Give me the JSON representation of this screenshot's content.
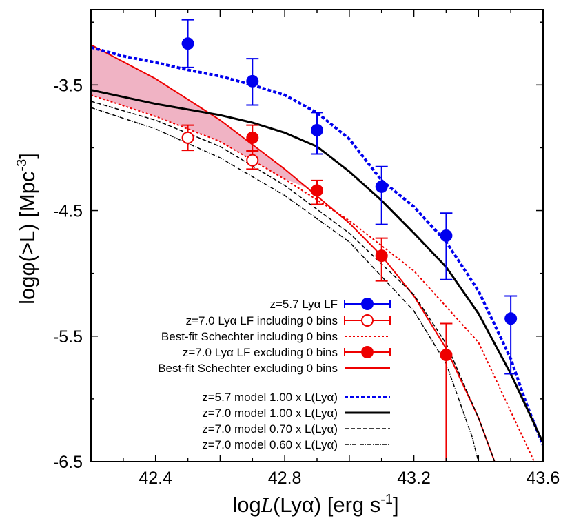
{
  "chart_data": {
    "type": "line",
    "xlabel_prefix": "log",
    "xlabel_var": "L",
    "xlabel_mid": "(Lyα) [erg s",
    "xlabel_sup": "-1",
    "xlabel_end": "]",
    "ylabel_main": "logφ(>L) [Mpc",
    "ylabel_sup": "-3",
    "ylabel_end": "]",
    "xlim": [
      42.2,
      43.6
    ],
    "ylim": [
      -6.5,
      -2.9
    ],
    "x_ticks": [
      "42.4",
      "42.8",
      "43.2",
      "43.6"
    ],
    "x_tick_values": [
      42.4,
      42.8,
      43.2,
      43.6
    ],
    "y_ticks": [
      "-3.5",
      "-4.5",
      "-5.5",
      "-6.5"
    ],
    "y_tick_values": [
      -3.5,
      -4.5,
      -5.5,
      -6.5
    ],
    "points": [
      {
        "name": "z=5.7 Lyα LF",
        "color": "#0000ee",
        "marker": "filled",
        "data": [
          {
            "x": 42.5,
            "y": -3.17,
            "lo": -3.36,
            "hi": -2.98
          },
          {
            "x": 42.7,
            "y": -3.47,
            "lo": -3.66,
            "hi": -3.29
          },
          {
            "x": 42.9,
            "y": -3.86,
            "lo": -4.05,
            "hi": -3.72
          },
          {
            "x": 43.1,
            "y": -4.31,
            "lo": -4.61,
            "hi": -4.15
          },
          {
            "x": 43.3,
            "y": -4.7,
            "lo": -5.05,
            "hi": -4.52
          },
          {
            "x": 43.5,
            "y": -5.36,
            "lo": -5.8,
            "hi": -5.18
          }
        ]
      },
      {
        "name": "z=7.0 Lyα LF including 0 bins",
        "color": "#ee0000",
        "marker": "open",
        "data": [
          {
            "x": 42.5,
            "y": -3.92,
            "lo": -4.02,
            "hi": -3.82
          },
          {
            "x": 42.7,
            "y": -4.1,
            "lo": -4.17,
            "hi": -4.03
          }
        ]
      },
      {
        "name": "z=7.0 Lyα LF excluding 0 bins",
        "color": "#ee0000",
        "marker": "filled",
        "data": [
          {
            "x": 42.7,
            "y": -3.92,
            "lo": -4.02,
            "hi": -3.82
          },
          {
            "x": 42.9,
            "y": -4.34,
            "lo": -4.45,
            "hi": -4.26
          },
          {
            "x": 43.1,
            "y": -4.86,
            "lo": -5.06,
            "hi": -4.72
          },
          {
            "x": 43.3,
            "y": -5.65,
            "lo": -6.5,
            "hi": -5.4
          }
        ]
      }
    ],
    "lines": [
      {
        "name": "Best-fit Schechter including 0 bins",
        "color": "#ee0000",
        "dash": "3,3",
        "width": 2,
        "data": [
          [
            42.2,
            -3.58
          ],
          [
            42.4,
            -3.75
          ],
          [
            42.6,
            -3.95
          ],
          [
            42.8,
            -4.25
          ],
          [
            43.0,
            -4.58
          ],
          [
            43.2,
            -4.98
          ],
          [
            43.4,
            -5.55
          ],
          [
            43.6,
            -6.65
          ]
        ]
      },
      {
        "name": "Best-fit Schechter excluding 0 bins",
        "color": "#ee0000",
        "dash": "",
        "width": 2,
        "data": [
          [
            42.2,
            -3.18
          ],
          [
            42.4,
            -3.45
          ],
          [
            42.6,
            -3.78
          ],
          [
            42.8,
            -4.17
          ],
          [
            43.0,
            -4.6
          ],
          [
            43.1,
            -4.86
          ],
          [
            43.2,
            -5.18
          ],
          [
            43.3,
            -5.6
          ],
          [
            43.4,
            -6.15
          ],
          [
            43.45,
            -6.5
          ]
        ]
      },
      {
        "name": "z=5.7 model 1.00 x L(Lyα)",
        "color": "#0000ee",
        "dash": "5,3",
        "width": 4,
        "data": [
          [
            42.2,
            -3.2
          ],
          [
            42.3,
            -3.27
          ],
          [
            42.4,
            -3.32
          ],
          [
            42.5,
            -3.38
          ],
          [
            42.6,
            -3.43
          ],
          [
            42.7,
            -3.5
          ],
          [
            42.8,
            -3.58
          ],
          [
            42.9,
            -3.72
          ],
          [
            43.0,
            -3.93
          ],
          [
            43.1,
            -4.26
          ],
          [
            43.2,
            -4.47
          ],
          [
            43.3,
            -4.75
          ],
          [
            43.4,
            -5.14
          ],
          [
            43.5,
            -5.68
          ],
          [
            43.55,
            -6.05
          ],
          [
            43.6,
            -6.37
          ]
        ]
      },
      {
        "name": "z=7.0 model 1.00 x L(Lyα)",
        "color": "#000000",
        "dash": "",
        "width": 3,
        "data": [
          [
            42.2,
            -3.54
          ],
          [
            42.4,
            -3.65
          ],
          [
            42.6,
            -3.74
          ],
          [
            42.7,
            -3.8
          ],
          [
            42.8,
            -3.88
          ],
          [
            42.9,
            -3.99
          ],
          [
            43.0,
            -4.19
          ],
          [
            43.1,
            -4.42
          ],
          [
            43.2,
            -4.68
          ],
          [
            43.3,
            -4.95
          ],
          [
            43.4,
            -5.32
          ],
          [
            43.5,
            -5.8
          ],
          [
            43.6,
            -6.35
          ]
        ]
      },
      {
        "name": "z=7.0 model 0.70 x L(Lyα)",
        "color": "#000000",
        "dash": "6,3",
        "width": 1.5,
        "data": [
          [
            42.2,
            -3.63
          ],
          [
            42.4,
            -3.78
          ],
          [
            42.6,
            -3.99
          ],
          [
            42.8,
            -4.3
          ],
          [
            43.0,
            -4.68
          ],
          [
            43.2,
            -5.17
          ],
          [
            43.3,
            -5.56
          ],
          [
            43.4,
            -6.15
          ],
          [
            43.45,
            -6.5
          ]
        ]
      },
      {
        "name": "z=7.0 model 0.60 x L(Lyα)",
        "color": "#000000",
        "dash": "6,2,1,2",
        "width": 1.5,
        "data": [
          [
            42.2,
            -3.68
          ],
          [
            42.4,
            -3.85
          ],
          [
            42.6,
            -4.08
          ],
          [
            42.8,
            -4.38
          ],
          [
            43.0,
            -4.75
          ],
          [
            43.2,
            -5.3
          ],
          [
            43.3,
            -5.72
          ],
          [
            43.38,
            -6.3
          ],
          [
            43.4,
            -6.5
          ]
        ]
      }
    ],
    "band": {
      "color": "#f0b3c4",
      "upper": [
        [
          42.2,
          -3.18
        ],
        [
          42.4,
          -3.45
        ],
        [
          42.6,
          -3.78
        ],
        [
          42.8,
          -4.17
        ],
        [
          42.88,
          -4.33
        ]
      ],
      "lower": [
        [
          42.88,
          -4.33
        ],
        [
          42.8,
          -4.25
        ],
        [
          42.6,
          -3.95
        ],
        [
          42.4,
          -3.75
        ],
        [
          42.2,
          -3.58
        ]
      ]
    },
    "legend": [
      {
        "label": "z=5.7 Lyα LF",
        "kind": "point",
        "color": "#0000ee",
        "marker": "filled"
      },
      {
        "label": "z=7.0 Lyα LF including 0 bins",
        "kind": "point",
        "color": "#ee0000",
        "marker": "open"
      },
      {
        "label": "Best-fit Schechter including 0 bins",
        "kind": "line",
        "color": "#ee0000",
        "dash": "3,3",
        "width": 2
      },
      {
        "label": "z=7.0 Lyα LF excluding 0 bins",
        "kind": "point",
        "color": "#ee0000",
        "marker": "filled"
      },
      {
        "label": "Best-fit Schechter excluding 0 bins",
        "kind": "line",
        "color": "#ee0000",
        "dash": "",
        "width": 2
      },
      {
        "label": "z=5.7 model 1.00 x L(Lyα)",
        "kind": "line",
        "color": "#0000ee",
        "dash": "5,3",
        "width": 4
      },
      {
        "label": "z=7.0 model 1.00 x L(Lyα)",
        "kind": "line",
        "color": "#000000",
        "dash": "",
        "width": 3
      },
      {
        "label": "z=7.0 model 0.70 x L(Lyα)",
        "kind": "line",
        "color": "#000000",
        "dash": "6,3",
        "width": 1.5
      },
      {
        "label": "z=7.0 model 0.60 x L(Lyα)",
        "kind": "line",
        "color": "#000000",
        "dash": "6,2,1,2",
        "width": 1.5
      }
    ],
    "grid": false,
    "legend_position": "bottom-center"
  }
}
